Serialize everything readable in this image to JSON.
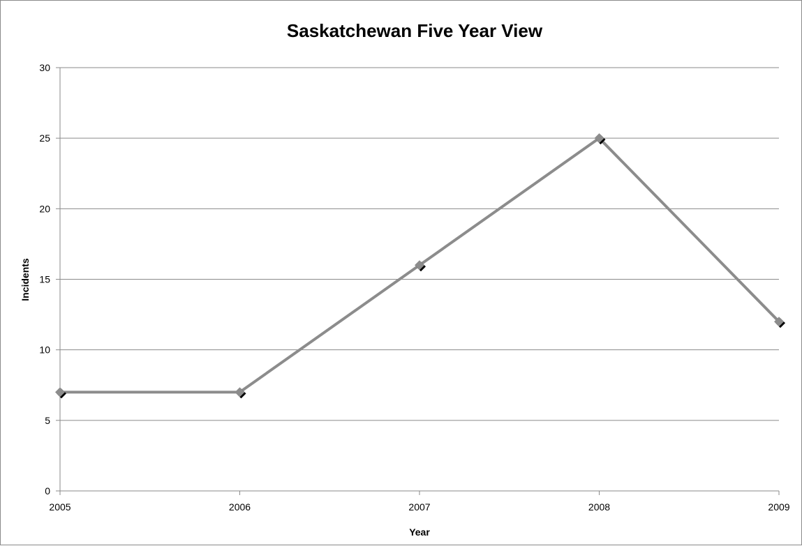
{
  "chart_data": {
    "type": "line",
    "title": "Saskatchewan Five Year View",
    "xlabel": "Year",
    "ylabel": "Incidents",
    "categories": [
      "2005",
      "2006",
      "2007",
      "2008",
      "2009"
    ],
    "series": [
      {
        "values": [
          7,
          7,
          16,
          25,
          12
        ]
      }
    ],
    "ylim": [
      0,
      30
    ],
    "yticks": [
      "0",
      "5",
      "10",
      "15",
      "20",
      "25",
      "30"
    ],
    "grid": true,
    "legend": "none",
    "colors": {
      "line": "#8c8c8c",
      "marker_shadow": "#000000",
      "marker": "#8c8c8c",
      "grid": "#8a8a8a"
    }
  }
}
